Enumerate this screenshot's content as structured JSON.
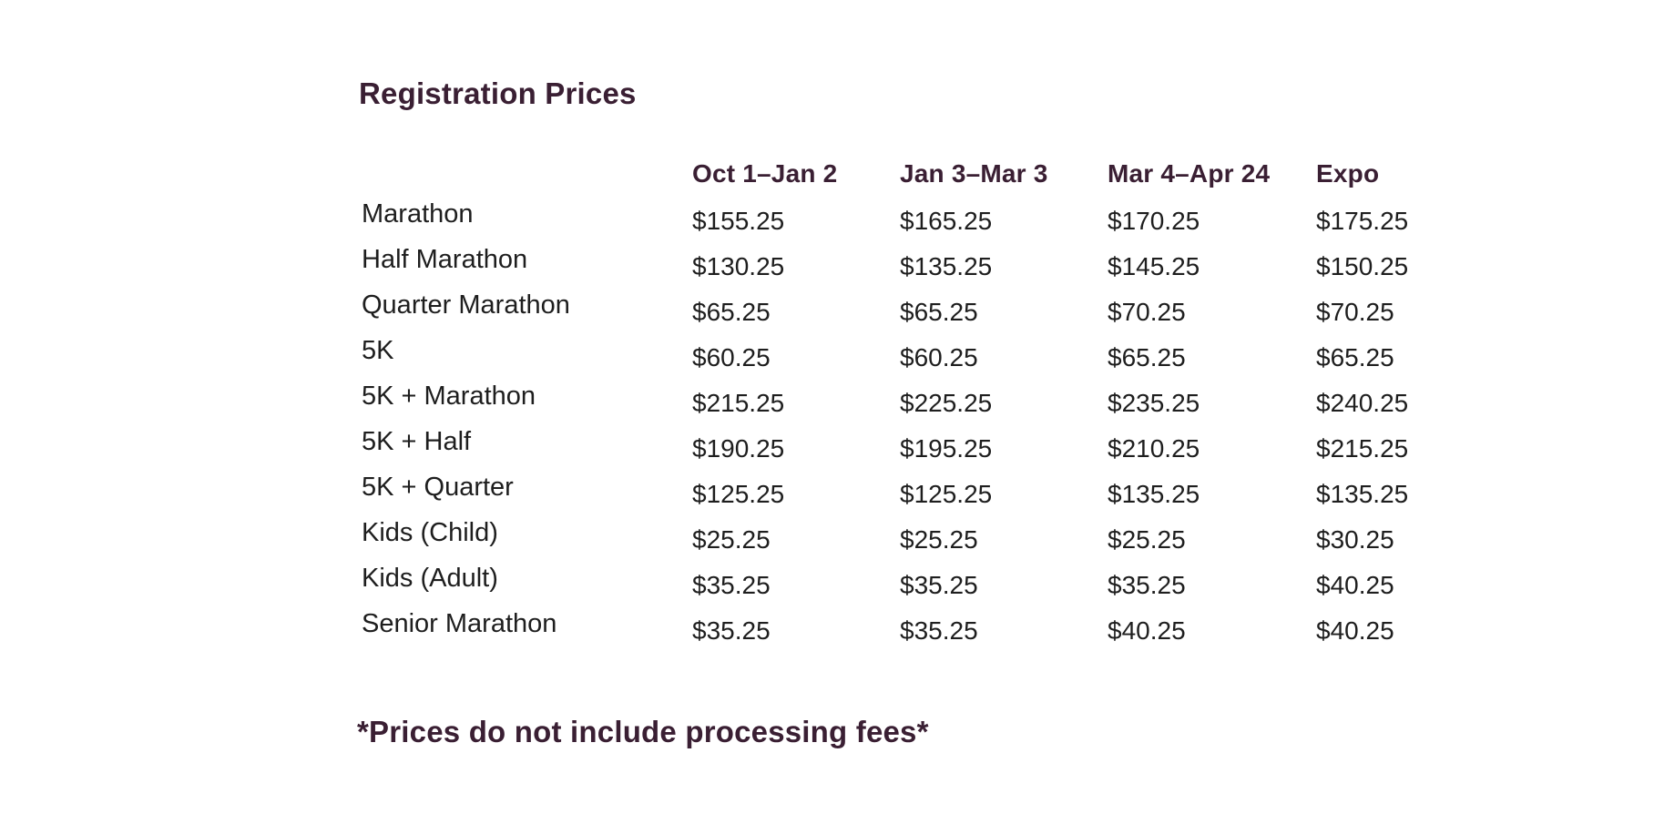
{
  "page": {
    "title": "Registration Prices",
    "footnote": "*Prices do not include processing fees*"
  },
  "table": {
    "columns": [
      "Oct 1–Jan 2",
      "Jan 3–Mar 3",
      "Mar 4–Apr 24",
      "Expo"
    ],
    "rows": [
      {
        "label": "Marathon",
        "prices": [
          "$155.25",
          "$165.25",
          "$170.25",
          "$175.25"
        ]
      },
      {
        "label": "Half Marathon",
        "prices": [
          "$130.25",
          "$135.25",
          "$145.25",
          "$150.25"
        ]
      },
      {
        "label": "Quarter Marathon",
        "prices": [
          "$65.25",
          "$65.25",
          "$70.25",
          "$70.25"
        ]
      },
      {
        "label": "5K",
        "prices": [
          "$60.25",
          "$60.25",
          "$65.25",
          "$65.25"
        ]
      },
      {
        "label": "5K + Marathon",
        "prices": [
          "$215.25",
          "$225.25",
          "$235.25",
          "$240.25"
        ]
      },
      {
        "label": "5K + Half",
        "prices": [
          "$190.25",
          "$195.25",
          "$210.25",
          "$215.25"
        ]
      },
      {
        "label": "5K + Quarter",
        "prices": [
          "$125.25",
          "$125.25",
          "$135.25",
          "$135.25"
        ]
      },
      {
        "label": "Kids (Child)",
        "prices": [
          "$25.25",
          "$25.25",
          "$25.25",
          "$30.25"
        ]
      },
      {
        "label": "Kids (Adult)",
        "prices": [
          "$35.25",
          "$35.25",
          "$35.25",
          "$40.25"
        ]
      },
      {
        "label": "Senior Marathon",
        "prices": [
          "$35.25",
          "$35.25",
          "$40.25",
          "$40.25"
        ]
      }
    ]
  },
  "chart_data": {
    "type": "table",
    "title": "Registration Prices",
    "columns": [
      "Oct 1–Jan 2",
      "Jan 3–Mar 3",
      "Mar 4–Apr 24",
      "Expo"
    ],
    "currency": "USD",
    "rows": [
      {
        "label": "Marathon",
        "values": [
          155.25,
          165.25,
          170.25,
          175.25
        ]
      },
      {
        "label": "Half Marathon",
        "values": [
          130.25,
          135.25,
          145.25,
          150.25
        ]
      },
      {
        "label": "Quarter Marathon",
        "values": [
          65.25,
          65.25,
          70.25,
          70.25
        ]
      },
      {
        "label": "5K",
        "values": [
          60.25,
          60.25,
          65.25,
          65.25
        ]
      },
      {
        "label": "5K + Marathon",
        "values": [
          215.25,
          225.25,
          235.25,
          240.25
        ]
      },
      {
        "label": "5K + Half",
        "values": [
          190.25,
          195.25,
          210.25,
          215.25
        ]
      },
      {
        "label": "5K + Quarter",
        "values": [
          125.25,
          125.25,
          135.25,
          135.25
        ]
      },
      {
        "label": "Kids (Child)",
        "values": [
          25.25,
          25.25,
          25.25,
          30.25
        ]
      },
      {
        "label": "Kids (Adult)",
        "values": [
          35.25,
          35.25,
          35.25,
          40.25
        ]
      },
      {
        "label": "Senior Marathon",
        "values": [
          35.25,
          35.25,
          40.25,
          40.25
        ]
      }
    ],
    "footnote": "*Prices do not include processing fees*"
  },
  "colors": {
    "accent": "#3A1F33",
    "body_text": "#1E1E1E",
    "background": "#FFFFFF"
  }
}
